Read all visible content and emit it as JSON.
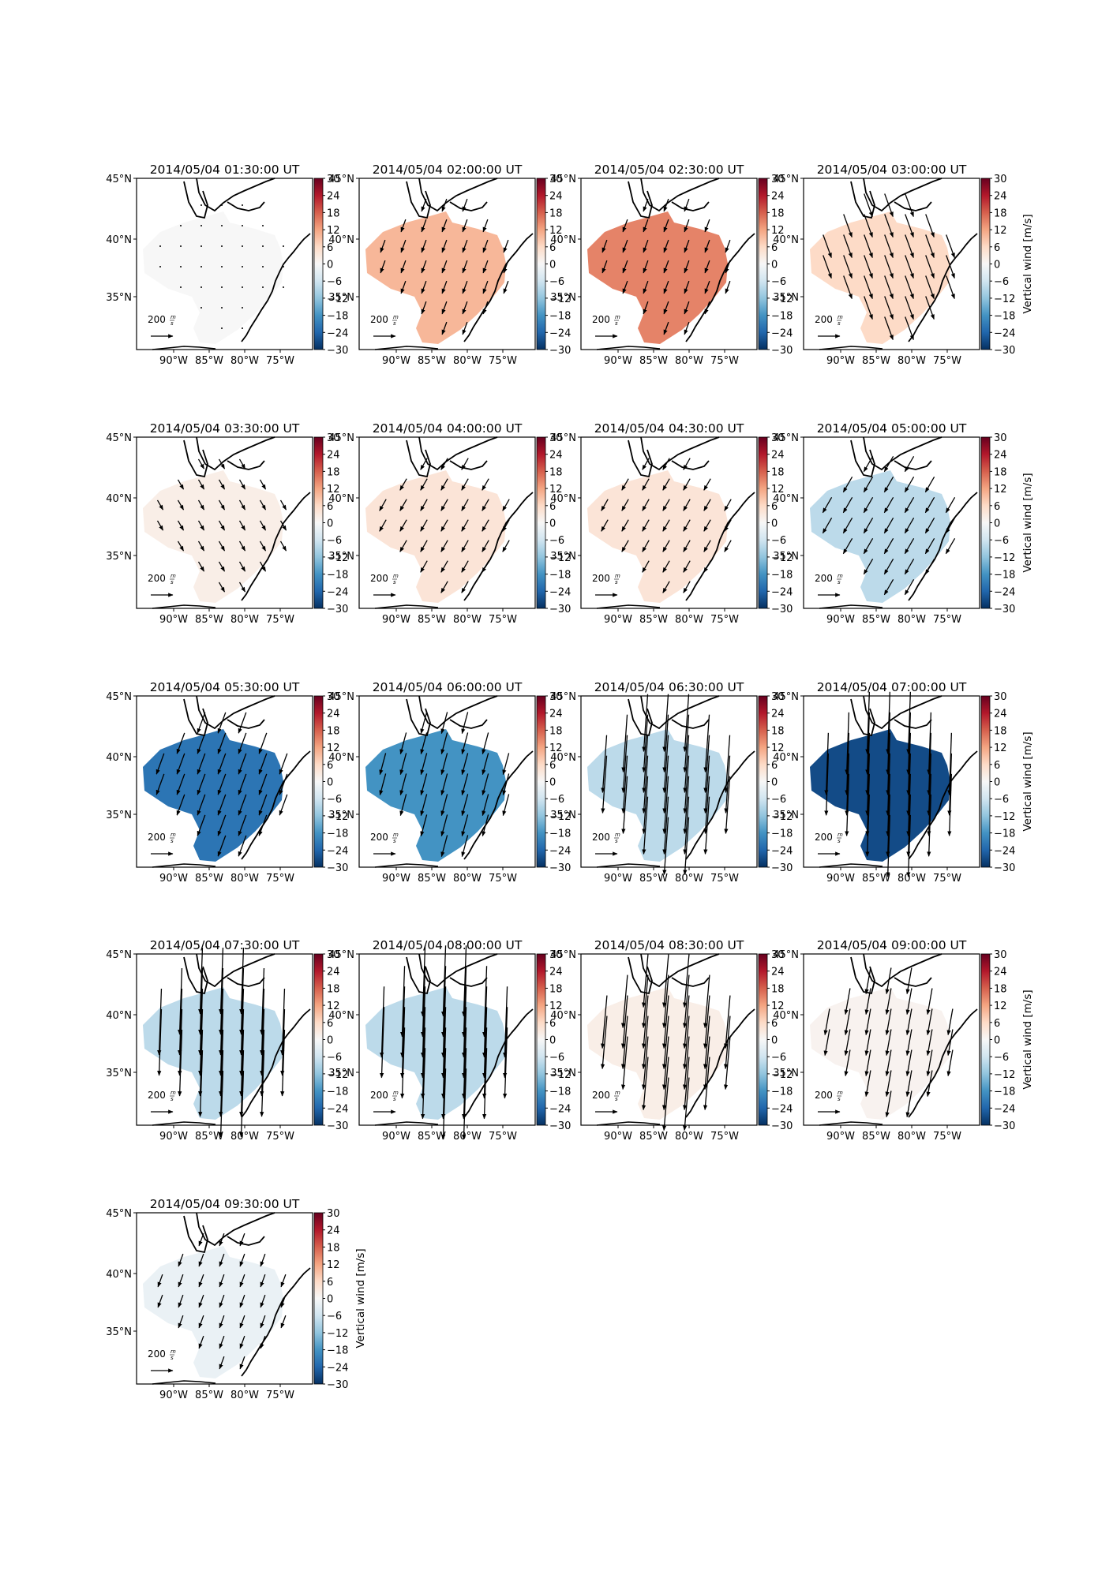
{
  "figure": {
    "colorbar": {
      "label": "Vertical wind [m/s]",
      "ticks": [
        "30",
        "24",
        "18",
        "12",
        "6",
        "0",
        "−6",
        "−12",
        "−18",
        "−24",
        "−30"
      ],
      "vmin": -30,
      "vmax": 30,
      "cmap": [
        "#053061",
        "#2166ac",
        "#4393c3",
        "#92c5de",
        "#d1e5f0",
        "#f7f7f7",
        "#fddbc7",
        "#f4a582",
        "#d6604d",
        "#b2182b",
        "#67001f"
      ]
    },
    "xtick_labels": [
      "90°W",
      "85°W",
      "80°W",
      "75°W"
    ],
    "ytick_labels": [
      "45°N",
      "40°N",
      "35°N"
    ],
    "quiver_key": {
      "value": "200",
      "unit_num": "m",
      "unit_den": "s"
    }
  },
  "chart_data": [
    {
      "type": "map",
      "title": "2014/05/04 01:30:00 UT",
      "vertical_wind": 0,
      "arrow_len": 0.1,
      "arrow_dir": 0
    },
    {
      "type": "map",
      "title": "2014/05/04 02:00:00 UT",
      "vertical_wind": 10,
      "arrow_len": 0.6,
      "arrow_dir": 200
    },
    {
      "type": "map",
      "title": "2014/05/04 02:30:00 UT",
      "vertical_wind": 15,
      "arrow_len": 0.6,
      "arrow_dir": 200
    },
    {
      "type": "map",
      "title": "2014/05/04 03:00:00 UT",
      "vertical_wind": 6,
      "arrow_len": 1.1,
      "arrow_dir": 160
    },
    {
      "type": "map",
      "title": "2014/05/04 03:30:00 UT",
      "vertical_wind": 2,
      "arrow_len": 0.5,
      "arrow_dir": 150
    },
    {
      "type": "map",
      "title": "2014/05/04 04:00:00 UT",
      "vertical_wind": 4,
      "arrow_len": 0.6,
      "arrow_dir": 210
    },
    {
      "type": "map",
      "title": "2014/05/04 04:30:00 UT",
      "vertical_wind": 4,
      "arrow_len": 0.6,
      "arrow_dir": 210
    },
    {
      "type": "map",
      "title": "2014/05/04 05:00:00 UT",
      "vertical_wind": -8,
      "arrow_len": 0.8,
      "arrow_dir": 210
    },
    {
      "type": "map",
      "title": "2014/05/04 05:30:00 UT",
      "vertical_wind": -22,
      "arrow_len": 1.0,
      "arrow_dir": 200
    },
    {
      "type": "map",
      "title": "2014/05/04 06:00:00 UT",
      "vertical_wind": -18,
      "arrow_len": 1.0,
      "arrow_dir": 195
    },
    {
      "type": "map",
      "title": "2014/05/04 06:30:00 UT",
      "vertical_wind": -8,
      "arrow_len": 2.6,
      "arrow_dir": 184
    },
    {
      "type": "map",
      "title": "2014/05/04 07:00:00 UT",
      "vertical_wind": -27,
      "arrow_len": 2.8,
      "arrow_dir": 182
    },
    {
      "type": "map",
      "title": "2014/05/04 07:30:00 UT",
      "vertical_wind": -8,
      "arrow_len": 3.0,
      "arrow_dir": 182
    },
    {
      "type": "map",
      "title": "2014/05/04 08:00:00 UT",
      "vertical_wind": -8,
      "arrow_len": 3.2,
      "arrow_dir": 182
    },
    {
      "type": "map",
      "title": "2014/05/04 08:30:00 UT",
      "vertical_wind": 2,
      "arrow_len": 2.4,
      "arrow_dir": 185
    },
    {
      "type": "map",
      "title": "2014/05/04 09:00:00 UT",
      "vertical_wind": 1,
      "arrow_len": 1.2,
      "arrow_dir": 190
    },
    {
      "type": "map",
      "title": "2014/05/04 09:30:00 UT",
      "vertical_wind": -2,
      "arrow_len": 0.6,
      "arrow_dir": 200
    }
  ]
}
